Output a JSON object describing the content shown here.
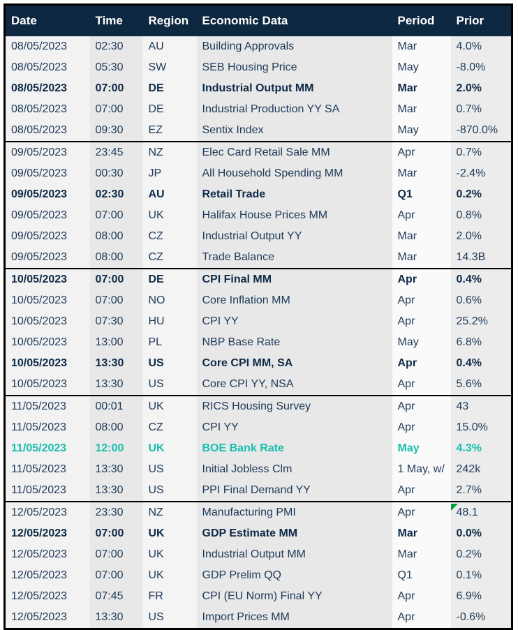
{
  "colors": {
    "header_bg": "#0d2840",
    "header_fg": "#ffffff",
    "body_text": "#1e3a58",
    "bold_text": "#0e2a47",
    "teal_highlight": "#17bfae",
    "error_indicator_green": "#009e3d"
  },
  "header": {
    "columns": [
      "Date",
      "Time",
      "Region",
      "Economic Data",
      "Period",
      "Prior"
    ]
  },
  "table": {
    "rows": [
      {
        "date": "08/05/2023",
        "time": "02:30",
        "region": "AU",
        "event": "Building Approvals",
        "period": "Mar",
        "prior": "4.0%",
        "emphasis": "normal",
        "separator": false,
        "marker": false
      },
      {
        "date": "08/05/2023",
        "time": "05:30",
        "region": "SW",
        "event": "SEB Housing Price",
        "period": "May",
        "prior": "-8.0%",
        "emphasis": "normal",
        "separator": false,
        "marker": false
      },
      {
        "date": "08/05/2023",
        "time": "07:00",
        "region": "DE",
        "event": "Industrial Output MM",
        "period": "Mar",
        "prior": "2.0%",
        "emphasis": "bold",
        "separator": false,
        "marker": false
      },
      {
        "date": "08/05/2023",
        "time": "07:00",
        "region": "DE",
        "event": "Industrial Production YY SA",
        "period": "Mar",
        "prior": "0.7%",
        "emphasis": "normal",
        "separator": false,
        "marker": false
      },
      {
        "date": "08/05/2023",
        "time": "09:30",
        "region": "EZ",
        "event": "Sentix Index",
        "period": "May",
        "prior": "-870.0%",
        "emphasis": "normal",
        "separator": false,
        "marker": false
      },
      {
        "date": "09/05/2023",
        "time": "23:45",
        "region": "NZ",
        "event": "Elec Card Retail Sale MM",
        "period": "Apr",
        "prior": "0.7%",
        "emphasis": "normal",
        "separator": true,
        "marker": false
      },
      {
        "date": "09/05/2023",
        "time": "00:30",
        "region": "JP",
        "event": "All Household Spending MM",
        "period": "Mar",
        "prior": "-2.4%",
        "emphasis": "normal",
        "separator": false,
        "marker": false
      },
      {
        "date": "09/05/2023",
        "time": "02:30",
        "region": "AU",
        "event": "Retail Trade",
        "period": "Q1",
        "prior": "0.2%",
        "emphasis": "bold",
        "separator": false,
        "marker": false
      },
      {
        "date": "09/05/2023",
        "time": "07:00",
        "region": "UK",
        "event": "Halifax House Prices MM",
        "period": "Apr",
        "prior": "0.8%",
        "emphasis": "normal",
        "separator": false,
        "marker": false
      },
      {
        "date": "09/05/2023",
        "time": "08:00",
        "region": "CZ",
        "event": "Industrial Output YY",
        "period": "Mar",
        "prior": "2.0%",
        "emphasis": "normal",
        "separator": false,
        "marker": false
      },
      {
        "date": "09/05/2023",
        "time": "08:00",
        "region": "CZ",
        "event": "Trade Balance",
        "period": "Mar",
        "prior": "14.3B",
        "emphasis": "normal",
        "separator": false,
        "marker": false
      },
      {
        "date": "10/05/2023",
        "time": "07:00",
        "region": "DE",
        "event": "CPI Final MM",
        "period": "Apr",
        "prior": "0.4%",
        "emphasis": "bold",
        "separator": true,
        "marker": false
      },
      {
        "date": "10/05/2023",
        "time": "07:00",
        "region": "NO",
        "event": "Core Inflation MM",
        "period": "Apr",
        "prior": "0.6%",
        "emphasis": "normal",
        "separator": false,
        "marker": false
      },
      {
        "date": "10/05/2023",
        "time": "07:30",
        "region": "HU",
        "event": "CPI YY",
        "period": "Apr",
        "prior": "25.2%",
        "emphasis": "normal",
        "separator": false,
        "marker": false
      },
      {
        "date": "10/05/2023",
        "time": "13:00",
        "region": "PL",
        "event": "NBP Base Rate",
        "period": "May",
        "prior": "6.8%",
        "emphasis": "normal",
        "separator": false,
        "marker": false
      },
      {
        "date": "10/05/2023",
        "time": "13:30",
        "region": "US",
        "event": "Core CPI MM, SA",
        "period": "Apr",
        "prior": "0.4%",
        "emphasis": "bold",
        "separator": false,
        "marker": false
      },
      {
        "date": "10/05/2023",
        "time": "13:30",
        "region": "US",
        "event": "Core CPI YY, NSA",
        "period": "Apr",
        "prior": "5.6%",
        "emphasis": "normal",
        "separator": false,
        "marker": false
      },
      {
        "date": "11/05/2023",
        "time": "00:01",
        "region": "UK",
        "event": "RICS Housing Survey",
        "period": "Apr",
        "prior": "43",
        "emphasis": "normal",
        "separator": true,
        "marker": false
      },
      {
        "date": "11/05/2023",
        "time": "08:00",
        "region": "CZ",
        "event": "CPI YY",
        "period": "Apr",
        "prior": "15.0%",
        "emphasis": "normal",
        "separator": false,
        "marker": false
      },
      {
        "date": "11/05/2023",
        "time": "12:00",
        "region": "UK",
        "event": "BOE Bank Rate",
        "period": "May",
        "prior": "4.3%",
        "emphasis": "teal",
        "separator": false,
        "marker": false
      },
      {
        "date": "11/05/2023",
        "time": "13:30",
        "region": "US",
        "event": "Initial Jobless Clm",
        "period": "1 May, w/",
        "prior": "242k",
        "emphasis": "normal",
        "separator": false,
        "marker": false
      },
      {
        "date": "11/05/2023",
        "time": "13:30",
        "region": "US",
        "event": "PPI Final Demand YY",
        "period": "Apr",
        "prior": "2.7%",
        "emphasis": "normal",
        "separator": false,
        "marker": false
      },
      {
        "date": "12/05/2023",
        "time": "23:30",
        "region": "NZ",
        "event": "Manufacturing PMI",
        "period": "Apr",
        "prior": "48.1",
        "emphasis": "normal",
        "separator": true,
        "marker": true
      },
      {
        "date": "12/05/2023",
        "time": "07:00",
        "region": "UK",
        "event": "GDP Estimate MM",
        "period": "Mar",
        "prior": "0.0%",
        "emphasis": "bold",
        "separator": false,
        "marker": false
      },
      {
        "date": "12/05/2023",
        "time": "07:00",
        "region": "UK",
        "event": "Industrial Output MM",
        "period": "Mar",
        "prior": "0.2%",
        "emphasis": "normal",
        "separator": false,
        "marker": false
      },
      {
        "date": "12/05/2023",
        "time": "07:00",
        "region": "UK",
        "event": "GDP Prelim QQ",
        "period": "Q1",
        "prior": "0.1%",
        "emphasis": "normal",
        "separator": false,
        "marker": false
      },
      {
        "date": "12/05/2023",
        "time": "07:45",
        "region": "FR",
        "event": "CPI (EU Norm) Final YY",
        "period": "Apr",
        "prior": "6.9%",
        "emphasis": "normal",
        "separator": false,
        "marker": false
      },
      {
        "date": "12/05/2023",
        "time": "13:30",
        "region": "US",
        "event": "Import Prices MM",
        "period": "Apr",
        "prior": "-0.6%",
        "emphasis": "normal",
        "separator": false,
        "marker": false
      }
    ]
  }
}
